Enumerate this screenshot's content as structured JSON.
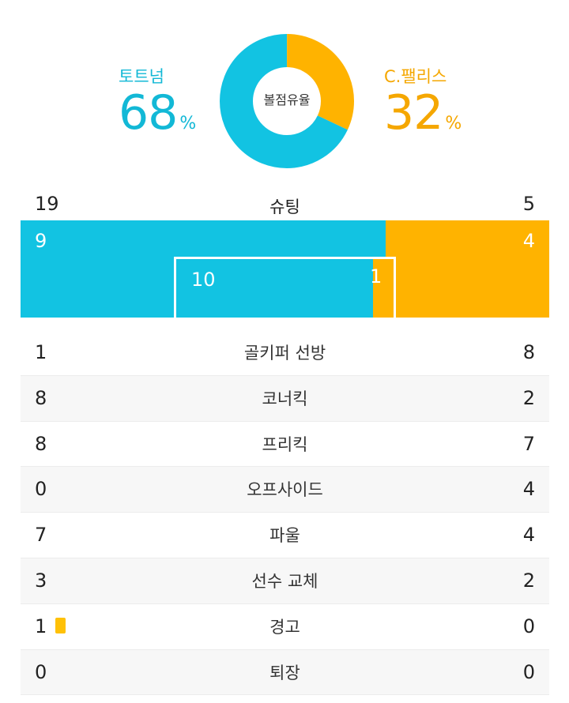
{
  "possession": {
    "label": "볼점유율",
    "home": {
      "name": "토트넘",
      "value": "68",
      "unit": "%",
      "fraction": 0.68,
      "color": "#12b8d6"
    },
    "away": {
      "name": "C.팰리스",
      "value": "32",
      "unit": "%",
      "fraction": 0.32,
      "color": "#f5a700"
    }
  },
  "shots": {
    "label": "슈팅",
    "home_total": "19",
    "away_total": "5",
    "home_outside": "9",
    "away_outside": "4",
    "home_inside": "10",
    "away_inside": "1"
  },
  "stats": [
    {
      "label": "골키퍼 선방",
      "home": "1",
      "away": "8"
    },
    {
      "label": "코너킥",
      "home": "8",
      "away": "2"
    },
    {
      "label": "프리킥",
      "home": "8",
      "away": "7"
    },
    {
      "label": "오프사이드",
      "home": "0",
      "away": "4"
    },
    {
      "label": "파울",
      "home": "7",
      "away": "4"
    },
    {
      "label": "선수 교체",
      "home": "3",
      "away": "2"
    },
    {
      "label": "경고",
      "home": "1",
      "away": "0",
      "home_card_icon": "yellow-card-icon"
    },
    {
      "label": "퇴장",
      "home": "0",
      "away": "0"
    }
  ]
}
